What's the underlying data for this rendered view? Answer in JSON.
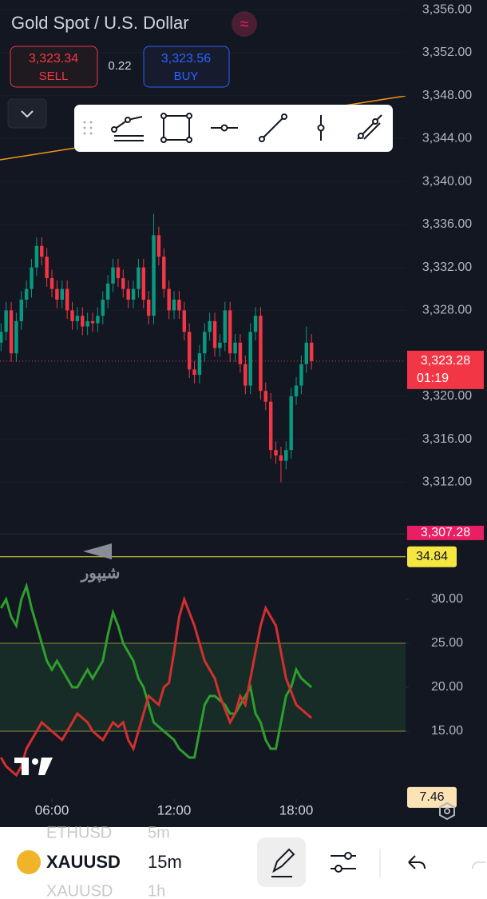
{
  "header": {
    "title": "Gold Spot / U.S. Dollar",
    "sell_price": "3,323.34",
    "sell_label": "SELL",
    "spread": "0.22",
    "buy_price": "3,323.56",
    "buy_label": "BUY"
  },
  "watermark": "شیپور",
  "chart_data": [
    {
      "type": "candlestick",
      "up_color": "#089981",
      "down_color": "#f23645",
      "x": [
        3.5,
        3.75,
        4,
        4.25,
        4.5,
        4.75,
        5,
        5.25,
        5.5,
        5.75,
        6,
        6.25,
        6.5,
        6.75,
        7,
        7.25,
        7.5,
        7.75,
        8,
        8.25,
        8.5,
        8.75,
        9,
        9.25,
        9.5,
        9.75,
        10,
        10.25,
        10.5,
        10.75,
        11,
        11.25,
        11.5,
        11.75,
        12,
        12.25,
        12.5,
        12.75,
        13,
        13.25,
        13.5,
        13.75,
        14,
        14.25,
        14.5,
        14.75,
        15,
        15.25,
        15.5,
        15.75,
        16,
        16.25,
        16.5,
        16.75,
        17,
        17.25,
        17.5,
        17.75,
        18,
        18.25,
        18.5,
        18.75
      ],
      "open": [
        3325,
        3326,
        3328,
        3324,
        3327,
        3329,
        3330,
        3332,
        3334,
        3333,
        3331,
        3330,
        3329,
        3330,
        3328,
        3327,
        3327.5,
        3326.5,
        3327,
        3326.8,
        3327.5,
        3329,
        3330.5,
        3332,
        3331,
        3330,
        3329,
        3330,
        3332,
        3329,
        3327.5,
        3335,
        3333,
        3330,
        3328,
        3329,
        3328,
        3326,
        3322.5,
        3322,
        3324,
        3326,
        3327,
        3324.5,
        3325,
        3328,
        3324,
        3325,
        3323,
        3321,
        3326,
        3327.5,
        3320.5,
        3319.5,
        3315,
        3314.5,
        3314,
        3315,
        3320,
        3321,
        3323,
        3325
      ],
      "high": [
        3326.8,
        3328.8,
        3328.8,
        3327.8,
        3329.8,
        3330.8,
        3332.8,
        3334.8,
        3334.8,
        3333.8,
        3331.8,
        3330.8,
        3330.8,
        3330.8,
        3328.8,
        3328.3,
        3328.3,
        3327.8,
        3327.8,
        3328.3,
        3329.8,
        3331.3,
        3332.8,
        3332.8,
        3331.8,
        3330.8,
        3330.8,
        3332.8,
        3332.8,
        3329.8,
        3337,
        3335.8,
        3333.8,
        3330.8,
        3329.8,
        3329.8,
        3328.8,
        3326.8,
        3323.3,
        3324.8,
        3326.8,
        3327.8,
        3327.8,
        3325.8,
        3328.8,
        3328.8,
        3325.8,
        3325.8,
        3323.8,
        3326.8,
        3328.3,
        3328.3,
        3321.3,
        3320.3,
        3315.8,
        3315.3,
        3315.8,
        3320.8,
        3321.8,
        3323.8,
        3326.5,
        3325.8
      ],
      "low": [
        3324.2,
        3325.2,
        3323.2,
        3323.2,
        3326.2,
        3328.2,
        3329.2,
        3331.2,
        3332.2,
        3330.2,
        3329.2,
        3328.2,
        3328.2,
        3327.2,
        3326.2,
        3326.2,
        3325.7,
        3325.7,
        3326,
        3326,
        3326.7,
        3328.2,
        3329.7,
        3330.2,
        3329.2,
        3328.2,
        3328.2,
        3329.2,
        3328.2,
        3326.7,
        3326.7,
        3332.2,
        3329.2,
        3327.2,
        3327.2,
        3327.2,
        3325.2,
        3321.7,
        3321.2,
        3321.2,
        3323.2,
        3325.2,
        3323.7,
        3323.7,
        3324.2,
        3323.2,
        3323.2,
        3322.2,
        3320.2,
        3320.2,
        3325.2,
        3319.7,
        3318.7,
        3314.2,
        3313.7,
        3312,
        3313.2,
        3314.2,
        3319.2,
        3320.2,
        3322.2,
        3322.5
      ],
      "close": [
        3326,
        3328,
        3324,
        3327,
        3329,
        3330,
        3332,
        3334,
        3333,
        3331,
        3330,
        3329,
        3330,
        3328,
        3327,
        3327.5,
        3326.5,
        3327,
        3326.8,
        3327.5,
        3329,
        3330.5,
        3332,
        3331,
        3330,
        3329,
        3330,
        3332,
        3329,
        3327.5,
        3335,
        3333,
        3330,
        3328,
        3329,
        3328,
        3326,
        3322.5,
        3322,
        3324,
        3326,
        3327,
        3324.5,
        3325,
        3328,
        3324,
        3325,
        3323,
        3321,
        3326,
        3327.5,
        3320.5,
        3319.5,
        3315,
        3314.5,
        3314,
        3315,
        3320,
        3321,
        3323,
        3325,
        3323.28
      ],
      "xlim": [
        3.45,
        23.37
      ],
      "ylim": [
        3307.2,
        3356.9
      ],
      "yticks": [
        {
          "value": 3312,
          "label": "3,312.00"
        },
        {
          "value": 3316,
          "label": "3,316.00"
        },
        {
          "value": 3320,
          "label": "3,320.00"
        },
        {
          "value": 3328,
          "label": "3,328.00"
        },
        {
          "value": 3332,
          "label": "3,332.00"
        },
        {
          "value": 3336,
          "label": "3,336.00"
        },
        {
          "value": 3340,
          "label": "3,340.00"
        },
        {
          "value": 3344,
          "label": "3,344.00"
        },
        {
          "value": 3348,
          "label": "3,348.00"
        },
        {
          "value": 3352,
          "label": "3,352.00"
        },
        {
          "value": 3356,
          "label": "3,356.00"
        }
      ],
      "last_price": {
        "value": 3323.28,
        "label": "3,323.28",
        "countdown": "01:19",
        "color": "#f23645"
      },
      "low_price": {
        "value": 3307.28,
        "label": "3,307.28",
        "color": "#e91e63"
      }
    },
    {
      "type": "line",
      "x": [
        3.5,
        3.75,
        4,
        4.25,
        4.5,
        4.75,
        5,
        5.25,
        5.5,
        5.75,
        6,
        6.25,
        6.5,
        6.75,
        7,
        7.25,
        7.5,
        7.75,
        8,
        8.25,
        8.5,
        8.75,
        9,
        9.25,
        9.5,
        9.75,
        10,
        10.25,
        10.5,
        10.75,
        11,
        11.25,
        11.5,
        11.75,
        12,
        12.25,
        12.5,
        12.75,
        13,
        13.25,
        13.5,
        13.75,
        14,
        14.25,
        14.5,
        14.75,
        15,
        15.25,
        15.5,
        15.75,
        16,
        16.25,
        16.5,
        16.75,
        17,
        17.25,
        17.5,
        17.75,
        18,
        18.25,
        18.5,
        18.75
      ],
      "series": [
        {
          "color": "#2e9e2e",
          "values": [
            29,
            30,
            28,
            27,
            30,
            31.5,
            29,
            27,
            25,
            23,
            22,
            23,
            22,
            21,
            20,
            20,
            21,
            22,
            21,
            22,
            23,
            26,
            28.5,
            27,
            25,
            24,
            23,
            21,
            20,
            18,
            16,
            15.5,
            15,
            14.5,
            14,
            13,
            12.5,
            12,
            12,
            15,
            18,
            19,
            19,
            18.5,
            18,
            17,
            17,
            18,
            19,
            20,
            17,
            16,
            14,
            13,
            13,
            16,
            19,
            20,
            22,
            21,
            20.5,
            20
          ]
        },
        {
          "color": "#d32f2f",
          "values": [
            12,
            11,
            10.5,
            10,
            11,
            13,
            14,
            15,
            16,
            15.5,
            15,
            14.5,
            14,
            15,
            16,
            17,
            16.5,
            16,
            15,
            14.5,
            14,
            15,
            16,
            15.5,
            16,
            14,
            13,
            15,
            17,
            19,
            18.5,
            18,
            20,
            20.5,
            24,
            28,
            30,
            28.5,
            27,
            25,
            23,
            22,
            21,
            19,
            17.5,
            16,
            17,
            19,
            18,
            21,
            24,
            27,
            29,
            28,
            27,
            24,
            21,
            19.5,
            18,
            17.5,
            17,
            16.5
          ]
        }
      ],
      "levels": [
        15,
        25
      ],
      "level_color": "#8c8c3c",
      "band_color": "#1b3a2a",
      "markers": [
        {
          "value": 34.84,
          "label": "34.84",
          "color": "#f5e642",
          "line": true
        },
        {
          "value": 7.46,
          "label": "7.46",
          "color": "#fbe3b5",
          "line": false
        }
      ],
      "xlim": [
        3.45,
        23.37
      ],
      "ylim": [
        7.27,
        37.45
      ],
      "yticks": [
        {
          "value": 15,
          "label": "15.00"
        },
        {
          "value": 20,
          "label": "20.00"
        },
        {
          "value": 25,
          "label": "25.00"
        },
        {
          "value": 30,
          "label": "30.00"
        }
      ],
      "xticks": [
        {
          "value": 6,
          "label": "06:00"
        },
        {
          "value": 12,
          "label": "12:00"
        },
        {
          "value": 18,
          "label": "18:00"
        }
      ]
    }
  ],
  "bottom_bar": {
    "symbol": "XAUUSD",
    "interval": "15m",
    "prev_symbol": "ETHUSD",
    "prev_interval": "5m",
    "next_symbol": "XAUUSD",
    "next_interval": "1h"
  }
}
